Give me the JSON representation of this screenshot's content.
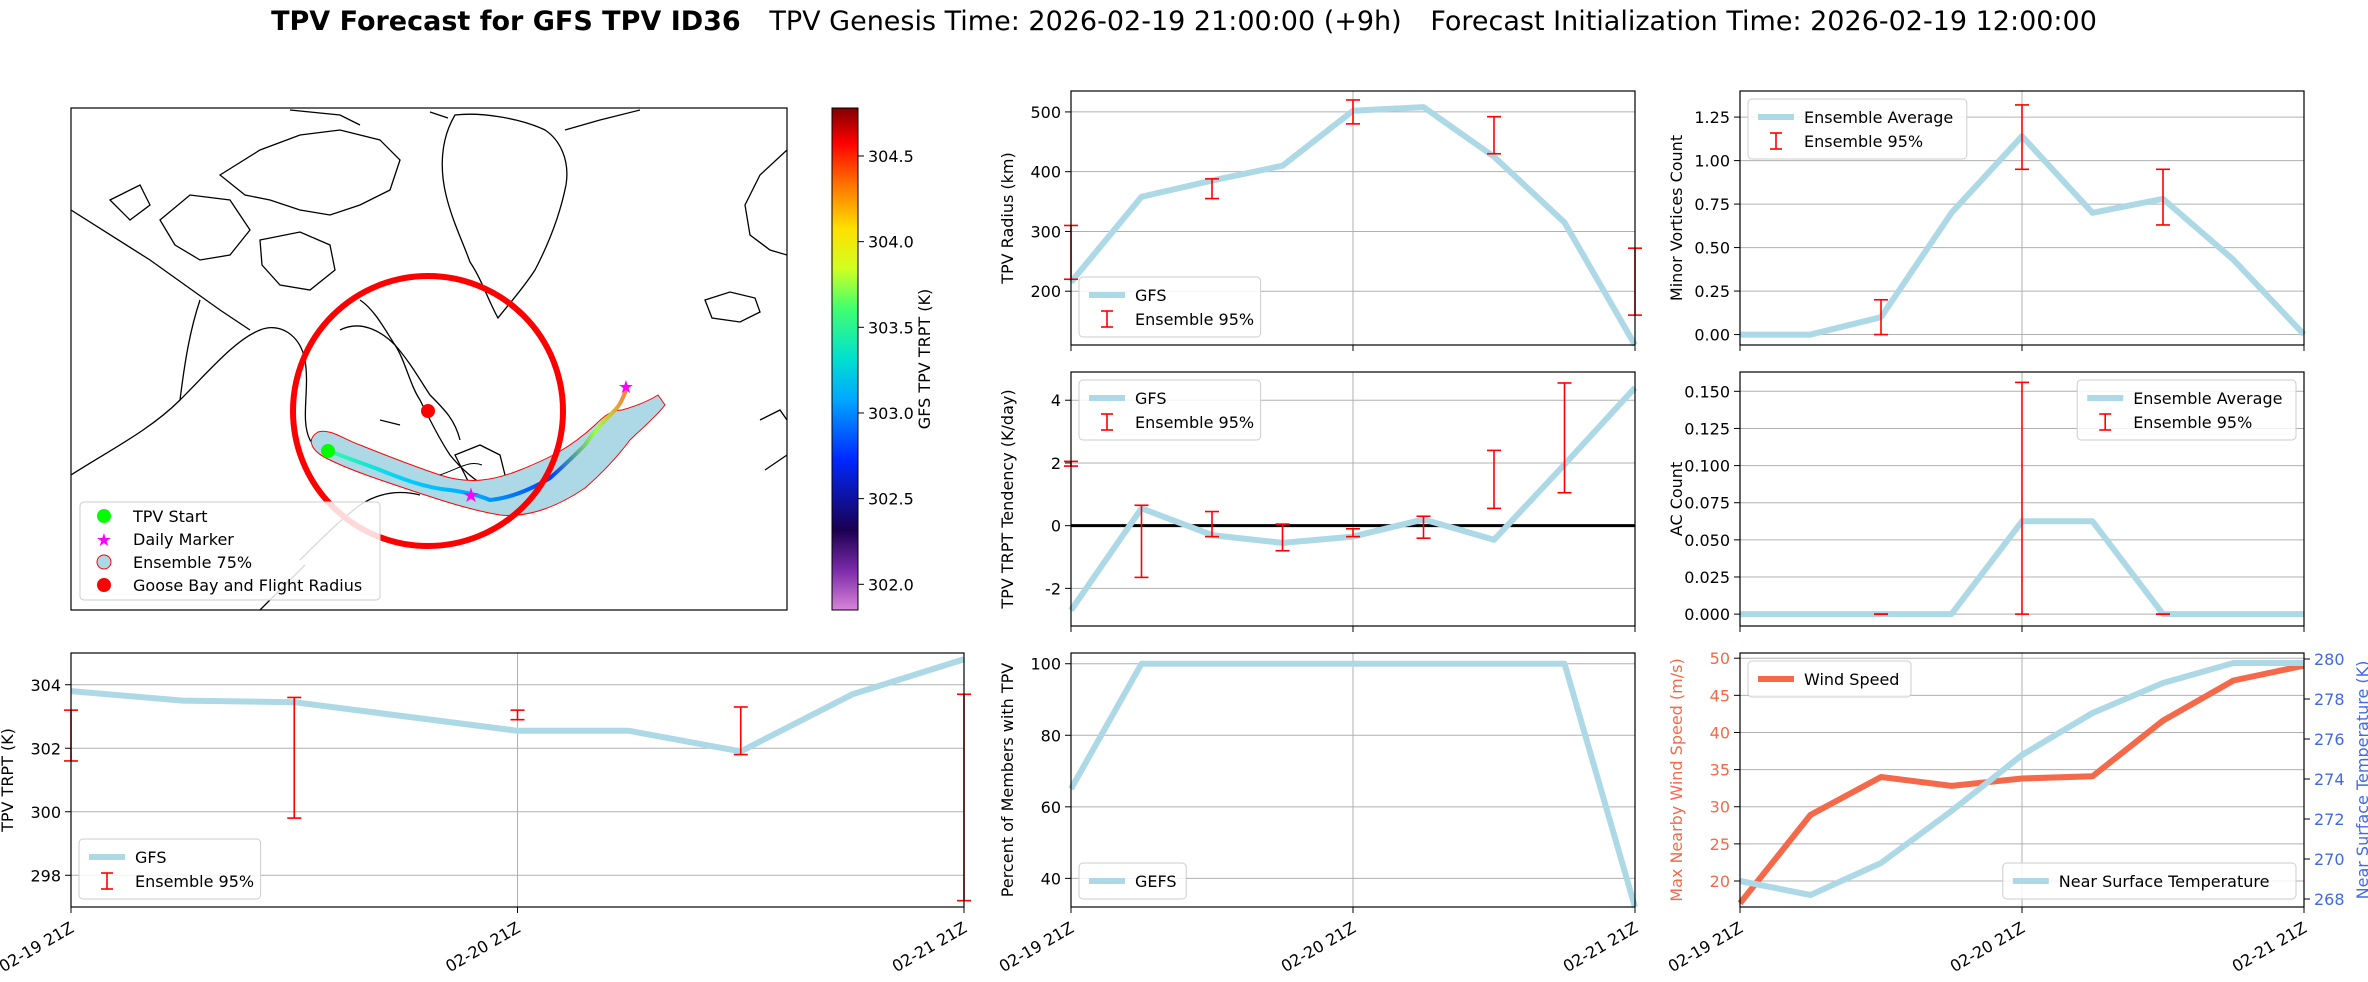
{
  "title": {
    "main": "TPV Forecast for GFS TPV ID36",
    "genesis": "TPV Genesis Time: 2026-02-19 21:00:00 (+9h)",
    "init": "Forecast Initialization Time: 2026-02-19 12:00:00"
  },
  "colors": {
    "gfs_line": "#add8e6",
    "ensemble_bar": "#ff0000",
    "wind": "#f4694a",
    "temp_axis": "#4169e1",
    "start_marker": "#00ff00",
    "daily_marker": "#ff00ff",
    "goose_bay": "#ff0000"
  },
  "map": {
    "legend": [
      "TPV Start",
      "Daily Marker",
      "Ensemble 75%",
      "Goose Bay and Flight Radius"
    ],
    "colorbar": {
      "label": "GFS TPV TRPT (K)",
      "ticks": [
        "304.5",
        "304.0",
        "303.5",
        "303.0",
        "302.5",
        "302.0"
      ],
      "range": [
        301.85,
        304.78
      ]
    }
  },
  "time_axis": {
    "ticks": [
      "02-19 21Z",
      "02-20 21Z",
      "02-21 21Z"
    ]
  },
  "chart_data": [
    {
      "id": "radius",
      "type": "line",
      "ylabel": "TPV Radius (km)",
      "x": [
        0,
        0.25,
        0.5,
        0.75,
        1,
        1.25,
        1.5,
        1.75,
        2
      ],
      "series": [
        {
          "name": "GFS",
          "values": [
            215,
            358,
            385,
            410,
            502,
            508,
            425,
            315,
            110
          ]
        }
      ],
      "errorbars": {
        "name": "Ensemble 95%",
        "x": [
          0,
          0.5,
          1,
          1.5,
          2
        ],
        "low": [
          220,
          355,
          480,
          430,
          160
        ],
        "high": [
          310,
          388,
          520,
          492,
          272
        ]
      },
      "ylim": [
        110,
        535
      ],
      "yticks": [
        200,
        300,
        400,
        500
      ],
      "legend": [
        "GFS",
        "Ensemble 95%"
      ],
      "legend_loc": "lower-left"
    },
    {
      "id": "minor",
      "type": "line",
      "ylabel": "Minor Vortices Count",
      "x": [
        0,
        0.25,
        0.5,
        0.75,
        1,
        1.25,
        1.5,
        1.75,
        2
      ],
      "series": [
        {
          "name": "Ensemble Average",
          "values": [
            0,
            0,
            0.1,
            0.7,
            1.14,
            0.7,
            0.78,
            0.43,
            0
          ]
        }
      ],
      "errorbars": {
        "name": "Ensemble 95%",
        "x": [
          0.5,
          1,
          1.5
        ],
        "low": [
          0,
          0.95,
          0.63
        ],
        "high": [
          0.2,
          1.32,
          0.95
        ]
      },
      "ylim": [
        -0.06,
        1.4
      ],
      "yticks": [
        0,
        0.25,
        0.5,
        0.75,
        1.0,
        1.25
      ],
      "legend": [
        "Ensemble Average",
        "Ensemble 95%"
      ],
      "legend_loc": "upper-left"
    },
    {
      "id": "tendency",
      "type": "line",
      "ylabel": "TPV TRPT Tendency (K/day)",
      "x": [
        0,
        0.25,
        0.5,
        0.75,
        1,
        1.25,
        1.5,
        1.75,
        2
      ],
      "series": [
        {
          "name": "GFS",
          "values": [
            -2.7,
            0.55,
            -0.3,
            -0.55,
            -0.35,
            0.2,
            -0.45,
            1.95,
            4.4
          ]
        }
      ],
      "errorbars": {
        "name": "Ensemble 95%",
        "x": [
          0,
          0.25,
          0.5,
          0.75,
          1,
          1.25,
          1.5,
          1.75
        ],
        "low": [
          1.9,
          -1.65,
          -0.35,
          -0.8,
          -0.35,
          -0.4,
          0.55,
          1.05
        ],
        "high": [
          2.05,
          0.65,
          0.45,
          0.05,
          -0.1,
          0.3,
          2.4,
          4.55
        ]
      },
      "hline": 0,
      "ylim": [
        -3.2,
        4.9
      ],
      "yticks": [
        -2,
        0,
        2,
        4
      ],
      "legend": [
        "GFS",
        "Ensemble 95%"
      ],
      "legend_loc": "upper-left"
    },
    {
      "id": "ac",
      "type": "line",
      "ylabel": "AC Count",
      "x": [
        0,
        0.25,
        0.5,
        0.75,
        1,
        1.25,
        1.5,
        1.75,
        2
      ],
      "series": [
        {
          "name": "Ensemble Average",
          "values": [
            0,
            0,
            0,
            0,
            0.0625,
            0.0625,
            0,
            0,
            0
          ]
        }
      ],
      "errorbars": {
        "name": "Ensemble 95%",
        "x": [
          0.5,
          1,
          1.5
        ],
        "low": [
          0,
          0,
          0
        ],
        "high": [
          0,
          0.156,
          0
        ]
      },
      "ylim": [
        -0.008,
        0.163
      ],
      "yticks": [
        0,
        0.025,
        0.05,
        0.075,
        0.1,
        0.125,
        0.15
      ],
      "legend": [
        "Ensemble Average",
        "Ensemble 95%"
      ],
      "legend_loc": "upper-right"
    },
    {
      "id": "trpt",
      "type": "line",
      "ylabel": "TPV TRPT (K)",
      "x": [
        0,
        0.25,
        0.5,
        0.75,
        1,
        1.25,
        1.5,
        1.75,
        2
      ],
      "series": [
        {
          "name": "GFS",
          "values": [
            303.8,
            303.5,
            303.45,
            303,
            302.55,
            302.55,
            301.9,
            303.7,
            304.8
          ]
        }
      ],
      "errorbars": {
        "name": "Ensemble 95%",
        "x": [
          0,
          0.5,
          1,
          1.5,
          2
        ],
        "low": [
          301.6,
          299.8,
          302.9,
          301.8,
          297.2
        ],
        "high": [
          303.2,
          303.6,
          303.2,
          303.3,
          303.7
        ]
      },
      "ylim": [
        297,
        305
      ],
      "yticks": [
        298,
        300,
        302,
        304
      ],
      "legend": [
        "GFS",
        "Ensemble 95%"
      ],
      "legend_loc": "lower-left"
    },
    {
      "id": "percent",
      "type": "line",
      "ylabel": "Percent of Members with TPV",
      "x": [
        0,
        0.25,
        0.5,
        0.75,
        1,
        1.25,
        1.5,
        1.75,
        2
      ],
      "series": [
        {
          "name": "GEFS",
          "values": [
            65,
            100,
            100,
            100,
            100,
            100,
            100,
            100,
            32
          ]
        }
      ],
      "ylim": [
        32,
        103
      ],
      "yticks": [
        40,
        60,
        80,
        100
      ],
      "legend": [
        "GEFS"
      ],
      "legend_loc": "lower-left"
    },
    {
      "id": "wind_temp",
      "type": "line",
      "ylabel": "Max Nearby Wind Speed (m/s)",
      "ylabel2": "Near Surface Temperature (K)",
      "x": [
        0,
        0.25,
        0.5,
        0.75,
        1,
        1.25,
        1.5,
        1.75,
        2
      ],
      "series": [
        {
          "name": "Wind Speed",
          "axis": "left",
          "values": [
            17,
            28.9,
            34,
            32.8,
            33.8,
            34.1,
            41.6,
            47,
            49
          ]
        },
        {
          "name": "Near Surface Temperature",
          "axis": "right",
          "values": [
            268.9,
            268.2,
            269.8,
            272.4,
            275.2,
            277.3,
            278.8,
            279.8,
            279.8
          ]
        }
      ],
      "ylim": [
        16.5,
        50.7
      ],
      "yticks": [
        20,
        25,
        30,
        35,
        40,
        45,
        50
      ],
      "ylim2": [
        267.6,
        280.3
      ],
      "yticks2": [
        268,
        270,
        272,
        274,
        276,
        278,
        280
      ],
      "legend": [
        "Wind Speed"
      ],
      "legend2": [
        "Near Surface Temperature"
      ]
    }
  ]
}
